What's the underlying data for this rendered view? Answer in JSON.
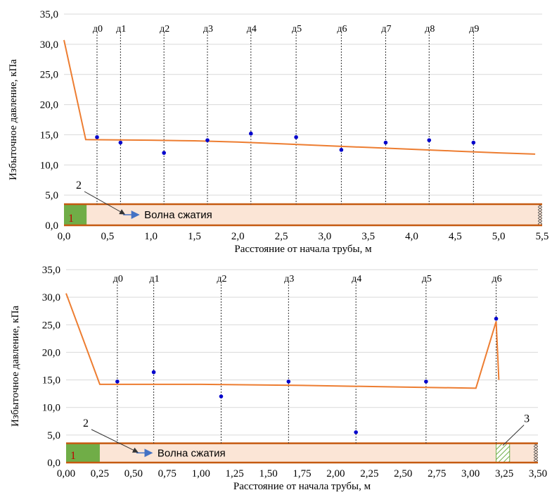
{
  "colors": {
    "line": "#ED7D31",
    "points": "#0000CC",
    "pipe_fill": "#FBE5D6",
    "pipe_border": "#C55A11",
    "green": "#70AD47",
    "grid": "#D9D9D9",
    "arrow": "#4472C4",
    "label_one": "#C00000"
  },
  "chart_data": [
    {
      "type": "line",
      "ylabel": "Избыточное давление, кПа",
      "xlabel": "Расстояние от начала трубы, м",
      "xlim": [
        0,
        5.5
      ],
      "ylim": [
        0,
        35
      ],
      "x_ticks": [
        "0,0",
        "0,5",
        "1,0",
        "1,5",
        "2,0",
        "2,5",
        "3,0",
        "3,5",
        "4,0",
        "4,5",
        "5,0",
        "5,5"
      ],
      "y_ticks": [
        "0,0",
        "5,0",
        "10,0",
        "15,0",
        "20,0",
        "25,0",
        "30,0",
        "35,0"
      ],
      "grid": "horizontal",
      "line": {
        "x": [
          0,
          0.25,
          1.0,
          1.5,
          2.0,
          2.5,
          3.0,
          3.5,
          4.0,
          4.5,
          5.0,
          5.42
        ],
        "y": [
          30.7,
          14.2,
          14.1,
          14.0,
          13.8,
          13.5,
          13.2,
          12.9,
          12.6,
          12.3,
          12.0,
          11.8
        ]
      },
      "sensors": [
        {
          "label": "д0",
          "x": 0.38,
          "y": 14.6
        },
        {
          "label": "д1",
          "x": 0.65,
          "y": 13.7
        },
        {
          "label": "д2",
          "x": 1.15,
          "y": 12.0
        },
        {
          "label": "д3",
          "x": 1.65,
          "y": 14.1
        },
        {
          "label": "д4",
          "x": 2.15,
          "y": 15.2
        },
        {
          "label": "д5",
          "x": 2.67,
          "y": 14.6
        },
        {
          "label": "д6",
          "x": 3.19,
          "y": 12.5
        },
        {
          "label": "д7",
          "x": 3.7,
          "y": 13.7
        },
        {
          "label": "д8",
          "x": 4.2,
          "y": 14.1
        },
        {
          "label": "д9",
          "x": 4.71,
          "y": 13.7
        }
      ],
      "pipe": {
        "ymax": 3.5,
        "green_end": 0.26,
        "label_one": "1",
        "wave_label": "Волна сжатия",
        "callout": "2"
      }
    },
    {
      "type": "line",
      "ylabel": "Избыточное давление, кПа",
      "xlabel": "Расстояние от начала трубы, м",
      "xlim": [
        0,
        3.5
      ],
      "ylim": [
        0,
        35
      ],
      "x_ticks": [
        "0,00",
        "0,25",
        "0,50",
        "0,75",
        "1,00",
        "1,25",
        "1,50",
        "1,75",
        "2,00",
        "2,25",
        "2,50",
        "2,75",
        "3,00",
        "3,25",
        "3,50"
      ],
      "y_ticks": [
        "0,0",
        "5,0",
        "10,0",
        "15,0",
        "20,0",
        "25,0",
        "30,0",
        "35,0"
      ],
      "grid": "horizontal",
      "line": {
        "x": [
          0,
          0.25,
          1.0,
          1.75,
          2.5,
          3.04,
          3.19,
          3.21
        ],
        "y": [
          30.7,
          14.2,
          14.2,
          14.0,
          13.7,
          13.5,
          25.6,
          15.0
        ]
      },
      "sensors": [
        {
          "label": "д0",
          "x": 0.38,
          "y": 14.7
        },
        {
          "label": "д1",
          "x": 0.65,
          "y": 16.4
        },
        {
          "label": "д2",
          "x": 1.15,
          "y": 12.0
        },
        {
          "label": "д3",
          "x": 1.65,
          "y": 14.7
        },
        {
          "label": "д4",
          "x": 2.15,
          "y": 5.5
        },
        {
          "label": "д5",
          "x": 2.67,
          "y": 14.7
        },
        {
          "label": "д6",
          "x": 3.19,
          "y": 26.1
        }
      ],
      "pipe": {
        "ymax": 3.5,
        "green_end": 0.25,
        "hatch_start": 3.19,
        "hatch_end": 3.29,
        "label_one": "1",
        "wave_label": "Волна сжатия",
        "callout": "2",
        "callout_hatch": "3"
      }
    }
  ]
}
